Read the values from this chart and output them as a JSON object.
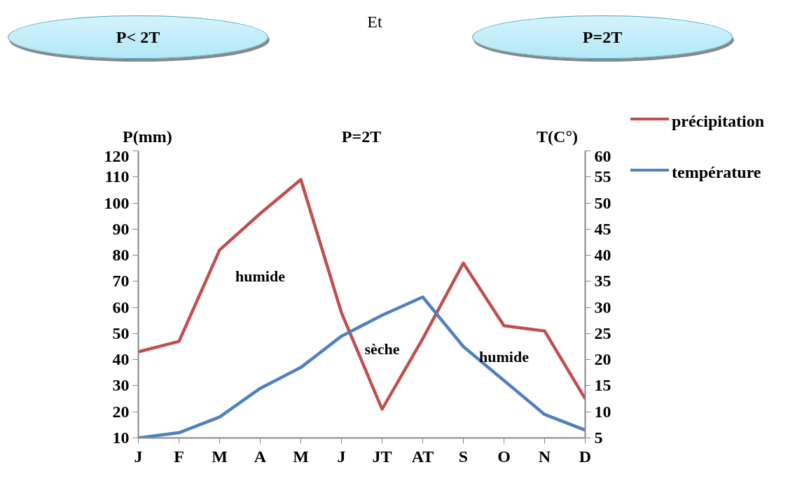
{
  "chart_data": {
    "type": "line",
    "title": "P=2T",
    "ylabel": "P(mm)",
    "y2label": "T(C°)",
    "categories": [
      "J",
      "F",
      "M",
      "A",
      "M",
      "J",
      "JT",
      "AT",
      "S",
      "O",
      "N",
      "D"
    ],
    "series": [
      {
        "name": "précipitation",
        "color": "#c0504d",
        "values": [
          43,
          47,
          82,
          96,
          109,
          58,
          21,
          48,
          77,
          53,
          51,
          25
        ]
      },
      {
        "name": "température",
        "color": "#4f81bd",
        "axis": "y2",
        "values": [
          5,
          6,
          9,
          14.5,
          18.5,
          24.5,
          28.5,
          32,
          22.5,
          16,
          9.5,
          6.5
        ]
      }
    ],
    "ylim": [
      10,
      120
    ],
    "yticks": [
      10,
      20,
      30,
      40,
      50,
      60,
      70,
      80,
      90,
      100,
      110,
      120
    ],
    "y2lim": [
      5,
      60
    ],
    "y2ticks": [
      5,
      10,
      15,
      20,
      25,
      30,
      35,
      40,
      45,
      50,
      55,
      60
    ],
    "grid": false,
    "legend": "top right",
    "marker": "none",
    "line_style": "solid",
    "annotations": [
      "P< 2T",
      "Et",
      "P=2T",
      "humide",
      "sèche",
      "humide"
    ]
  }
}
